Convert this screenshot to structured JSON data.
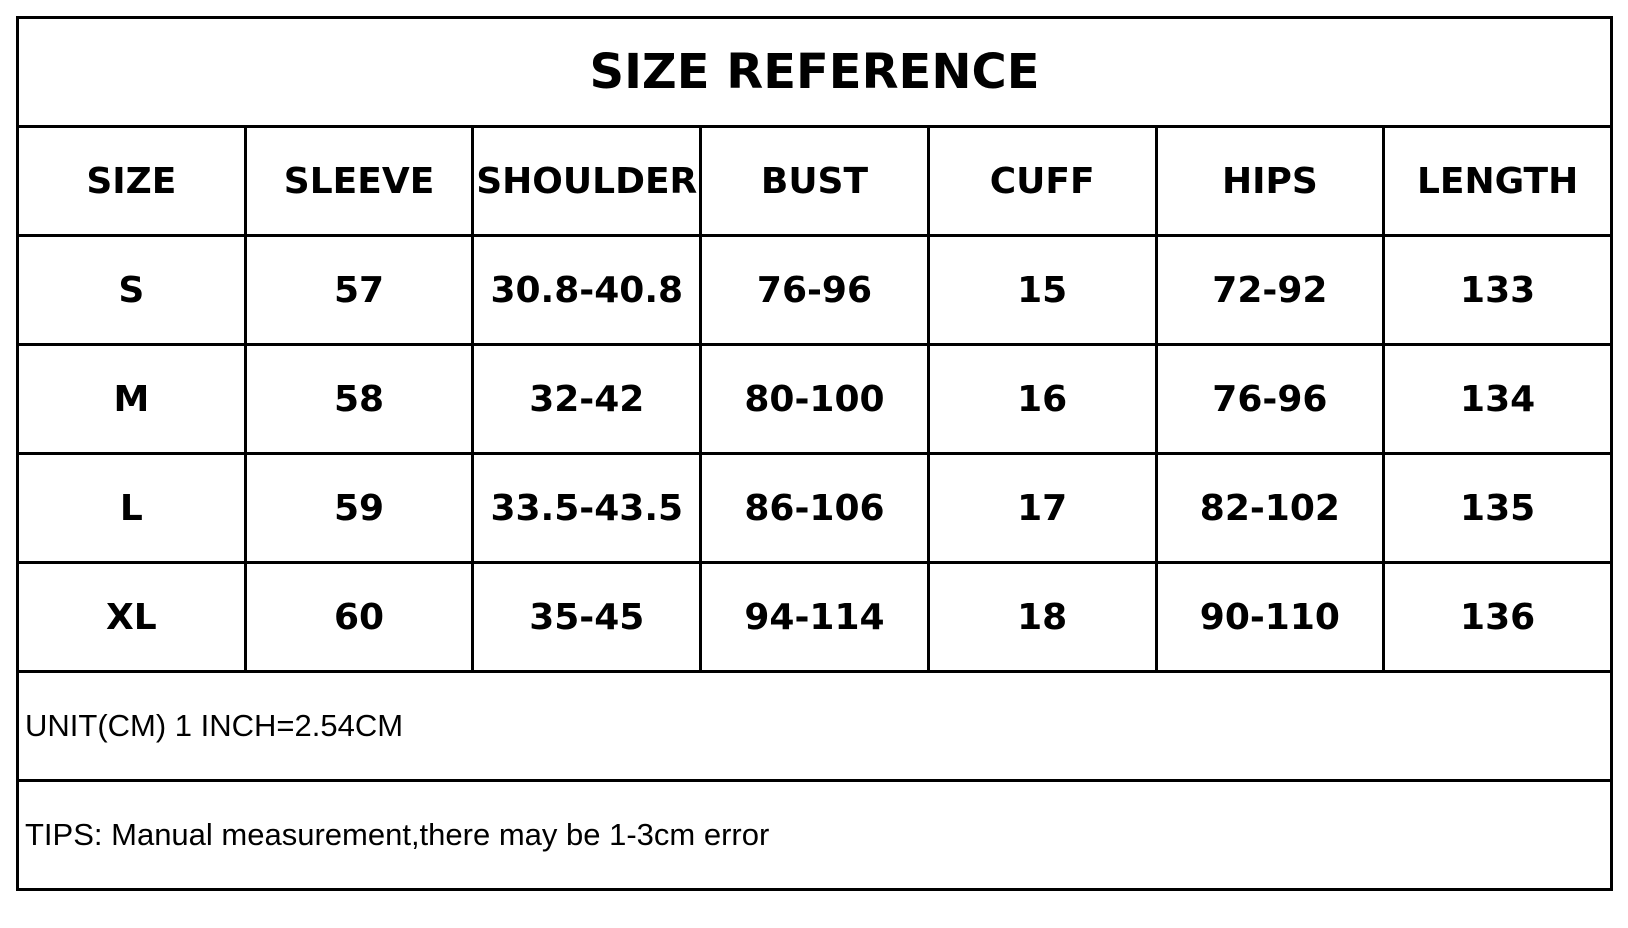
{
  "title": "SIZE REFERENCE",
  "headers": [
    "SIZE",
    "SLEEVE",
    "SHOULDER",
    "BUST",
    "CUFF",
    "HIPS",
    "LENGTH"
  ],
  "rows": [
    [
      "S",
      "57",
      "30.8-40.8",
      "76-96",
      "15",
      "72-92",
      "133"
    ],
    [
      "M",
      "58",
      "32-42",
      "80-100",
      "16",
      "76-96",
      "134"
    ],
    [
      "L",
      "59",
      "33.5-43.5",
      "86-106",
      "17",
      "82-102",
      "135"
    ],
    [
      "XL",
      "60",
      "35-45",
      "94-114",
      "18",
      "90-110",
      "136"
    ]
  ],
  "unit_note": "UNIT(CM) 1 INCH=2.54CM",
  "tips": "TIPS: Manual measurement,there may be 1-3cm error"
}
